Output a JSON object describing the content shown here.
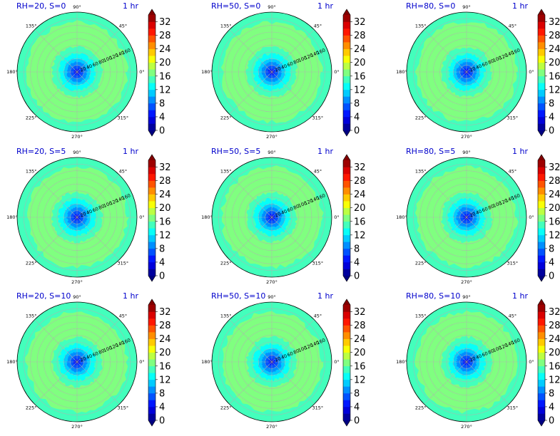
{
  "figure": {
    "rows": 3,
    "cols": 3
  },
  "chart_data": {
    "type": "heatmap",
    "projection": "polar",
    "colormap": "jet",
    "levels": [
      0,
      2,
      4,
      6,
      8,
      10,
      12,
      14,
      16,
      18,
      20,
      22,
      24,
      26,
      28,
      30,
      32,
      34
    ],
    "colorbar_ticks": [
      "0",
      "4",
      "8",
      "12",
      "16",
      "20",
      "24",
      "28",
      "32"
    ],
    "colorbar_extend": "both",
    "angle_ticks": [
      "0°",
      "45°",
      "90°",
      "135°",
      "180°",
      "225°",
      "270°",
      "315°"
    ],
    "radial_ticks": [
      "20",
      "40",
      "60",
      "80",
      "100",
      "120",
      "140",
      "160"
    ],
    "rlim": [
      0,
      180
    ],
    "radial_label_angle_deg": 22.5,
    "grid": true,
    "radial_profile": {
      "r": [
        0,
        10,
        20,
        30,
        40,
        50,
        60,
        70,
        80,
        120,
        150,
        180
      ],
      "value": [
        4,
        6,
        8,
        10,
        12,
        13.5,
        14.5,
        15.5,
        16.5,
        16.5,
        14.5,
        14.5
      ],
      "note_ring": "outer band approx. r 150-180 is ~14"
    },
    "panels": [
      {
        "title": "RH=20, S=0",
        "time": "1 hr"
      },
      {
        "title": "RH=50, S=0",
        "time": "1 hr"
      },
      {
        "title": "RH=80, S=0",
        "time": "1 hr"
      },
      {
        "title": "RH=20, S=5",
        "time": "1 hr"
      },
      {
        "title": "RH=50, S=5",
        "time": "1 hr"
      },
      {
        "title": "RH=80, S=5",
        "time": "1 hr"
      },
      {
        "title": "RH=20, S=10",
        "time": "1 hr"
      },
      {
        "title": "RH=50, S=10",
        "time": "1 hr"
      },
      {
        "title": "RH=80, S=10",
        "time": "1 hr"
      }
    ]
  }
}
